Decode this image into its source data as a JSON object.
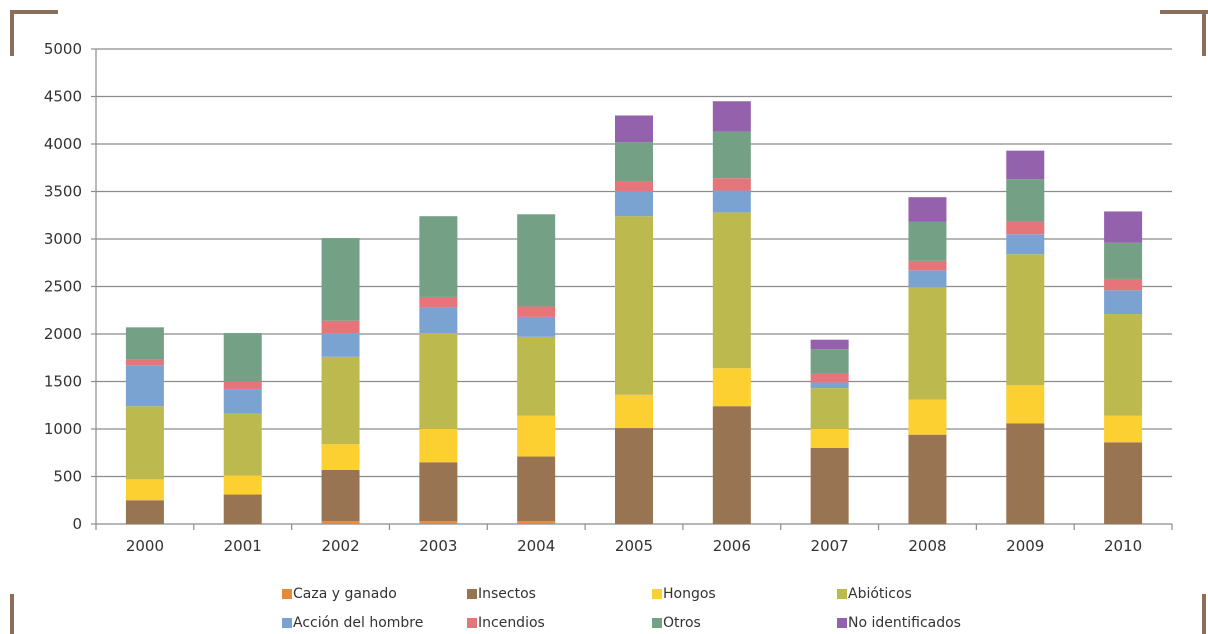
{
  "chart_data": {
    "type": "bar",
    "stacked": true,
    "title": "",
    "xlabel": "",
    "ylabel": "",
    "ylim": [
      0,
      5000
    ],
    "yticks": [
      0,
      500,
      1000,
      1500,
      2000,
      2500,
      3000,
      3500,
      4000,
      4500,
      5000
    ],
    "grid": true,
    "legend_position": "bottom",
    "categories": [
      "2000",
      "2001",
      "2002",
      "2003",
      "2004",
      "2005",
      "2006",
      "2007",
      "2008",
      "2009",
      "2010"
    ],
    "series": [
      {
        "name": "Caza y ganado",
        "color": "#e8893a",
        "values": [
          0,
          0,
          30,
          30,
          30,
          0,
          0,
          0,
          0,
          0,
          0
        ]
      },
      {
        "name": "Insectos",
        "color": "#987452",
        "values": [
          250,
          310,
          540,
          620,
          680,
          1010,
          1240,
          800,
          940,
          1060,
          860
        ]
      },
      {
        "name": "Hongos",
        "color": "#fbd030",
        "values": [
          220,
          200,
          270,
          350,
          430,
          350,
          400,
          200,
          370,
          400,
          280
        ]
      },
      {
        "name": "Abióticos",
        "color": "#bcb94e",
        "values": [
          770,
          650,
          920,
          1010,
          830,
          1880,
          1640,
          430,
          1180,
          1380,
          1070
        ]
      },
      {
        "name": "Acción del hombre",
        "color": "#7ba3d1",
        "values": [
          430,
          260,
          250,
          270,
          210,
          260,
          230,
          60,
          180,
          210,
          250
        ]
      },
      {
        "name": "Incendios",
        "color": "#e5757a",
        "values": [
          60,
          80,
          130,
          110,
          110,
          110,
          130,
          90,
          100,
          130,
          120
        ]
      },
      {
        "name": "Otros",
        "color": "#74a086",
        "values": [
          340,
          510,
          870,
          850,
          970,
          410,
          490,
          260,
          410,
          450,
          380
        ]
      },
      {
        "name": "No identificados",
        "color": "#9462ac",
        "values": [
          0,
          0,
          0,
          0,
          0,
          280,
          320,
          100,
          260,
          300,
          330
        ]
      }
    ]
  }
}
